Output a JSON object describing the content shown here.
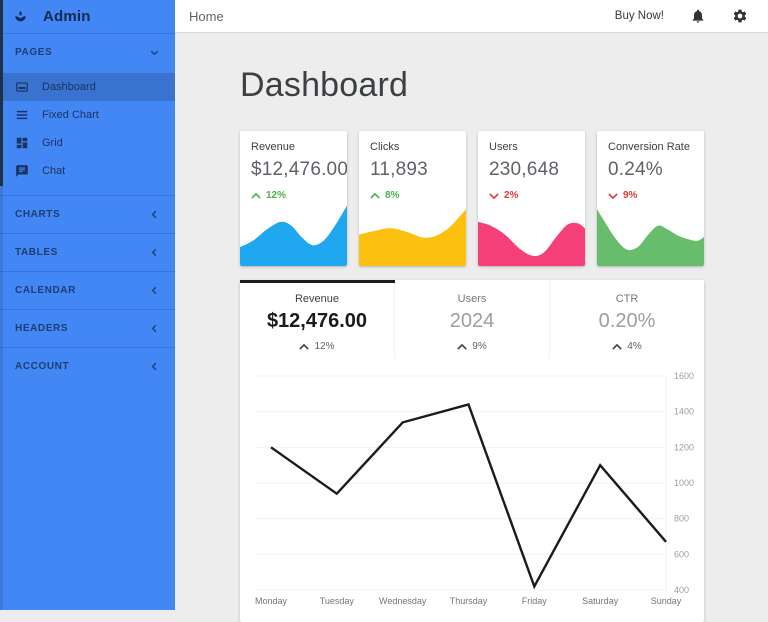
{
  "sidebar": {
    "title": "Admin",
    "logo_icon": "spa-icon",
    "sections": [
      {
        "label": "PAGES",
        "state": "expanded",
        "items": [
          {
            "label": "Dashboard",
            "icon": "dashboard-card-icon",
            "active": true
          },
          {
            "label": "Fixed Chart",
            "icon": "list-icon",
            "active": false
          },
          {
            "label": "Grid",
            "icon": "grid-icon",
            "active": false
          },
          {
            "label": "Chat",
            "icon": "chat-icon",
            "active": false
          }
        ]
      },
      {
        "label": "CHARTS",
        "state": "collapsed",
        "items": []
      },
      {
        "label": "TABLES",
        "state": "collapsed",
        "items": []
      },
      {
        "label": "CALENDAR",
        "state": "collapsed",
        "items": []
      },
      {
        "label": "HEADERS",
        "state": "collapsed",
        "items": []
      },
      {
        "label": "ACCOUNT",
        "state": "collapsed",
        "items": []
      }
    ]
  },
  "topbar": {
    "breadcrumb": "Home",
    "buy_now_label": "Buy Now!",
    "icons": [
      "bell-icon",
      "gear-icon"
    ]
  },
  "page": {
    "title": "Dashboard"
  },
  "stat_cards": [
    {
      "label": "Revenue",
      "value": "$12,476.00",
      "trend": "12%",
      "direction": "up",
      "color": "#1fa8f0",
      "spark_shape": [
        [
          0,
          30
        ],
        [
          12,
          40
        ],
        [
          25,
          58
        ],
        [
          38,
          70
        ],
        [
          48,
          64
        ],
        [
          58,
          45
        ],
        [
          68,
          33
        ],
        [
          78,
          40
        ],
        [
          88,
          62
        ],
        [
          100,
          96
        ]
      ]
    },
    {
      "label": "Clicks",
      "value": "11,893",
      "trend": "8%",
      "direction": "up",
      "color": "#fcc011",
      "spark_shape": [
        [
          0,
          50
        ],
        [
          15,
          56
        ],
        [
          30,
          60
        ],
        [
          45,
          54
        ],
        [
          60,
          45
        ],
        [
          72,
          48
        ],
        [
          85,
          62
        ],
        [
          100,
          90
        ]
      ]
    },
    {
      "label": "Users",
      "value": "230,648",
      "trend": "2%",
      "direction": "down",
      "color": "#f43f78",
      "spark_shape": [
        [
          0,
          70
        ],
        [
          12,
          64
        ],
        [
          25,
          50
        ],
        [
          40,
          26
        ],
        [
          52,
          16
        ],
        [
          62,
          22
        ],
        [
          74,
          48
        ],
        [
          84,
          66
        ],
        [
          93,
          68
        ],
        [
          100,
          60
        ]
      ]
    },
    {
      "label": "Conversion Rate",
      "value": "0.24%",
      "trend": "9%",
      "direction": "down",
      "color": "#68bd6c",
      "spark_shape": [
        [
          0,
          90
        ],
        [
          8,
          68
        ],
        [
          18,
          42
        ],
        [
          28,
          26
        ],
        [
          38,
          30
        ],
        [
          48,
          50
        ],
        [
          57,
          64
        ],
        [
          66,
          58
        ],
        [
          76,
          48
        ],
        [
          86,
          42
        ],
        [
          94,
          40
        ],
        [
          100,
          46
        ]
      ]
    }
  ],
  "overview_tabs": [
    {
      "label": "Revenue",
      "value": "$12,476.00",
      "trend": "12%",
      "direction": "up",
      "active": true
    },
    {
      "label": "Users",
      "value": "2024",
      "trend": "9%",
      "direction": "up",
      "active": false
    },
    {
      "label": "CTR",
      "value": "0.20%",
      "trend": "4%",
      "direction": "up",
      "active": false
    }
  ],
  "chart_data": {
    "type": "line",
    "title": "",
    "categories": [
      "Monday",
      "Tuesday",
      "Wednesday",
      "Thursday",
      "Friday",
      "Saturday",
      "Sunday"
    ],
    "values": [
      1200,
      940,
      1340,
      1440,
      420,
      1100,
      670
    ],
    "ylim": [
      400,
      1600
    ],
    "yticks": [
      400,
      600,
      800,
      1000,
      1200,
      1400,
      1600
    ],
    "y_axis_position": "right",
    "grid": true,
    "line_color": "#1b1b1b"
  },
  "colors": {
    "sidebar_bg": "#4387f4",
    "sidebar_text": "#1d3e74",
    "trend_up": "#4caf50",
    "trend_down": "#e53935",
    "content_bg": "#ededed",
    "card_bg": "#ffffff"
  }
}
